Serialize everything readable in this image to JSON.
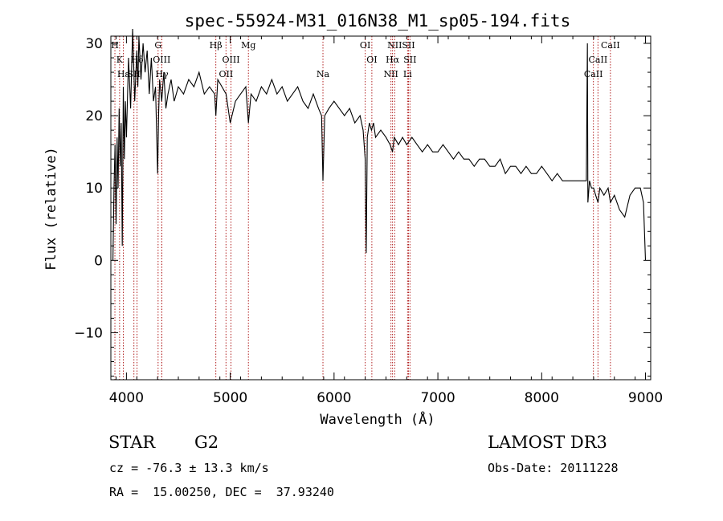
{
  "chart_data": {
    "type": "line",
    "title": "spec-55924-M31_016N38_M1_sp05-194.fits",
    "xlabel": "Wavelength (Å)",
    "ylabel": "Flux (relative)",
    "xlim": [
      3850,
      9050
    ],
    "ylim": [
      -16.5,
      31
    ],
    "xticks": [
      4000,
      5000,
      6000,
      7000,
      8000,
      9000
    ],
    "yticks": [
      -10,
      0,
      10,
      20,
      30
    ],
    "grid": false,
    "series": [
      {
        "name": "flux",
        "color": "#000000",
        "x": [
          3870,
          3880,
          3890,
          3900,
          3910,
          3920,
          3930,
          3940,
          3950,
          3960,
          3970,
          3980,
          3990,
          4000,
          4020,
          4040,
          4060,
          4080,
          4100,
          4110,
          4120,
          4140,
          4160,
          4180,
          4200,
          4220,
          4240,
          4260,
          4280,
          4300,
          4310,
          4320,
          4340,
          4360,
          4380,
          4400,
          4430,
          4460,
          4500,
          4550,
          4600,
          4650,
          4700,
          4750,
          4800,
          4850,
          4861,
          4880,
          4920,
          4960,
          5000,
          5050,
          5100,
          5150,
          5175,
          5200,
          5250,
          5300,
          5350,
          5400,
          5450,
          5500,
          5550,
          5600,
          5650,
          5700,
          5750,
          5800,
          5850,
          5880,
          5893,
          5910,
          5950,
          6000,
          6050,
          6100,
          6150,
          6200,
          6250,
          6280,
          6300,
          6310,
          6320,
          6340,
          6360,
          6380,
          6400,
          6450,
          6500,
          6540,
          6563,
          6580,
          6620,
          6660,
          6700,
          6750,
          6800,
          6850,
          6900,
          6950,
          7000,
          7050,
          7100,
          7150,
          7200,
          7250,
          7300,
          7350,
          7400,
          7450,
          7500,
          7550,
          7600,
          7650,
          7700,
          7750,
          7800,
          7850,
          7900,
          7950,
          8000,
          8050,
          8100,
          8150,
          8200,
          8250,
          8300,
          8350,
          8400,
          8430,
          8440,
          8445,
          8450,
          8460,
          8480,
          8500,
          8520,
          8542,
          8560,
          8600,
          8640,
          8662,
          8700,
          8750,
          8800,
          8850,
          8900,
          8950,
          8980,
          9000
        ],
        "values": [
          0,
          10,
          16,
          5,
          17,
          10,
          21,
          13,
          19,
          2,
          24,
          14,
          22,
          17,
          28,
          21,
          32,
          22,
          29,
          24,
          31,
          25,
          30,
          26,
          29,
          23,
          28,
          22,
          24,
          12,
          20,
          25,
          22,
          26,
          21,
          23,
          25,
          22,
          24,
          23,
          25,
          24,
          26,
          23,
          24,
          23,
          20,
          25,
          24,
          23,
          19,
          22,
          23,
          24,
          19,
          23,
          22,
          24,
          23,
          25,
          23,
          24,
          22,
          23,
          24,
          22,
          21,
          23,
          21,
          20,
          11,
          20,
          21,
          22,
          21,
          20,
          21,
          19,
          20,
          18,
          14,
          1,
          17,
          19,
          18,
          19,
          17,
          18,
          17,
          16,
          15,
          17,
          16,
          17,
          16,
          17,
          16,
          15,
          16,
          15,
          15,
          16,
          15,
          14,
          15,
          14,
          14,
          13,
          14,
          14,
          13,
          13,
          14,
          12,
          13,
          13,
          12,
          13,
          12,
          12,
          13,
          12,
          11,
          12,
          11,
          11,
          11,
          11,
          11,
          11,
          30,
          8,
          9,
          11,
          10,
          10,
          9,
          8,
          10,
          9,
          10,
          8,
          9,
          7,
          6,
          9,
          10,
          10,
          8,
          0
        ]
      }
    ],
    "lines": [
      {
        "label": "H",
        "x": 3889,
        "row": 0
      },
      {
        "label": "K",
        "x": 3934,
        "row": 1
      },
      {
        "label": "Hε",
        "x": 3970,
        "row": 2
      },
      {
        "label": "SII",
        "x": 4072,
        "row": 2
      },
      {
        "label": "Hδ",
        "x": 4102,
        "row": 1
      },
      {
        "label": "G",
        "x": 4305,
        "row": 0
      },
      {
        "label": "OIII",
        "x": 4340,
        "row": 1
      },
      {
        "label": "Hγ",
        "x": 4341,
        "row": 2
      },
      {
        "label": "Hβ",
        "x": 4861,
        "row": 0
      },
      {
        "label": "OII",
        "x": 4959,
        "row": 2
      },
      {
        "label": "OIII",
        "x": 5007,
        "row": 1
      },
      {
        "label": "Mg",
        "x": 5175,
        "row": 0
      },
      {
        "label": "Na",
        "x": 5893,
        "row": 2
      },
      {
        "label": "OI",
        "x": 6300,
        "row": 0
      },
      {
        "label": "OI",
        "x": 6364,
        "row": 1
      },
      {
        "label": "NII",
        "x": 6548,
        "row": 2
      },
      {
        "label": "NII",
        "x": 6584,
        "row": 0
      },
      {
        "label": "Hα",
        "x": 6563,
        "row": 1
      },
      {
        "label": "SII",
        "x": 6717,
        "row": 0
      },
      {
        "label": "SII",
        "x": 6731,
        "row": 1
      },
      {
        "label": "Li",
        "x": 6708,
        "row": 2
      },
      {
        "label": "CaII",
        "x": 8498,
        "row": 2
      },
      {
        "label": "CaII",
        "x": 8542,
        "row": 1
      },
      {
        "label": "CaII",
        "x": 8662,
        "row": 0
      }
    ],
    "colors": {
      "axis": "#000000",
      "line": "#000000",
      "marker": "#b22222"
    }
  },
  "info": {
    "class": "STAR",
    "subclass": "G2",
    "survey": "LAMOST DR3",
    "cz": "cz = -76.3 ± 13.3 km/s",
    "obs_date": "Obs-Date: 20111228",
    "radec": "RA =  15.00250, DEC =  37.93240"
  }
}
